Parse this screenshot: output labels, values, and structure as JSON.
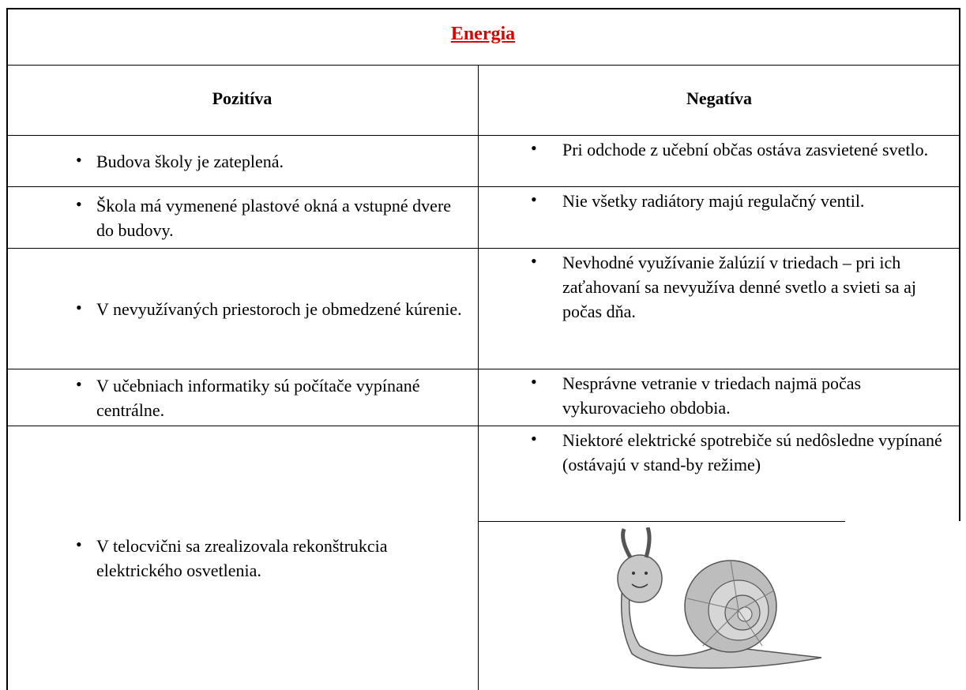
{
  "header": {
    "title": "Energia"
  },
  "table": {
    "columns": [
      "Pozitíva",
      "Negatíva"
    ],
    "rows": [
      [
        "Budova školy je zateplená.",
        "Pri odchode z učební občas ostáva zasvietené svetlo."
      ],
      [
        "Škola má vymenené plastové okná a vstupné dvere do budovy.",
        "Nie všetky radiátory majú regulačný ventil."
      ],
      [
        "V nevyužívaných priestoroch je obmedzené kúrenie.",
        "Nevhodné využívanie žalúzií v triedach – pri ich zaťahovaní sa nevyužíva denné svetlo a svieti sa aj počas dňa."
      ],
      [
        "V učebniach informatiky sú počítače vypínané centrálne.",
        "Nesprávne vetranie v triedach najmä počas vykurovacieho obdobia."
      ],
      [
        "V telocvični sa zrealizovala rekonštrukcia elektrického osvetlenia.",
        "Niektoré elektrické spotrebiče sú nedôsledne vypínané (ostávajú v stand-by režime)"
      ]
    ]
  }
}
